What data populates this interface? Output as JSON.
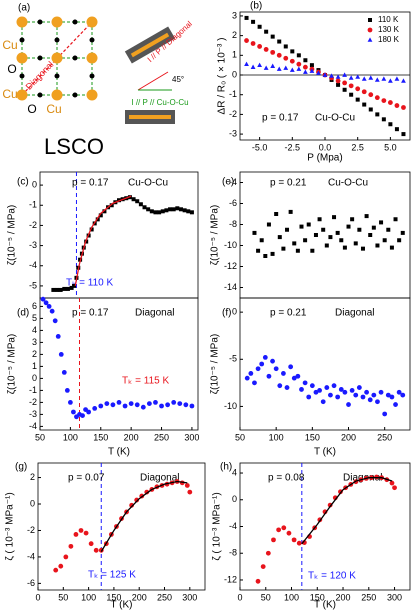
{
  "diagram": {
    "panel_label": "(a)",
    "site_labels": [
      "Cu",
      "O",
      "Cu",
      "O",
      "Cu"
    ],
    "diagonal_label": "Diagonal",
    "config_diagonal": "I // P // Diagonal",
    "angle": "45°",
    "config_cuocu": "I // P // Cu-O-Cu",
    "material": "LSCO"
  },
  "chart_data": [
    {
      "type": "scatter",
      "panel_label": "(b)",
      "xlabel": "P (Mpa)",
      "ylabel": "ΔR / R₀ ( × 10⁻³ )",
      "xlim": [
        -6.5,
        6.5
      ],
      "ylim": [
        -3.3,
        3.2
      ],
      "xticks": [
        {
          "value": -5,
          "label": "-5.0"
        },
        {
          "value": -2.5,
          "label": "-2.5"
        },
        {
          "value": 0,
          "label": "0.0"
        },
        {
          "value": 2.5,
          "label": "2.5"
        },
        {
          "value": 5,
          "label": "5.0"
        }
      ],
      "yticks": [
        -3,
        -2,
        -1,
        0,
        1,
        2,
        3
      ],
      "hlines": [
        0
      ],
      "legend": "top right",
      "annotations": [
        {
          "text": "p = 0.17",
          "color": "#000000"
        },
        {
          "text": "Cu-O-Cu",
          "color": "#000000"
        }
      ],
      "series": [
        {
          "name": "110 K",
          "color": "#000000",
          "marker": "square",
          "x": [
            -6,
            -5.5,
            -5,
            -4.5,
            -4,
            -3.5,
            -3,
            -2.5,
            -2,
            -1.5,
            -1,
            -0.5,
            0,
            0.5,
            1,
            1.5,
            2,
            2.5,
            3,
            3.5,
            4,
            4.5,
            5,
            5.5,
            6
          ],
          "values": [
            2.9,
            2.7,
            2.45,
            2.2,
            1.95,
            1.7,
            1.45,
            1.2,
            1.0,
            0.75,
            0.5,
            0.25,
            0,
            -0.25,
            -0.5,
            -0.75,
            -1.0,
            -1.25,
            -1.5,
            -1.75,
            -2.0,
            -2.25,
            -2.5,
            -2.75,
            -3.0
          ]
        },
        {
          "name": "130 K",
          "color": "#e8141c",
          "marker": "circle",
          "x": [
            -6,
            -5.5,
            -5,
            -4.5,
            -4,
            -3.5,
            -3,
            -2.5,
            -2,
            -1.5,
            -1,
            -0.5,
            0,
            0.5,
            1,
            1.5,
            2,
            2.5,
            3,
            3.5,
            4,
            4.5,
            5,
            5.5,
            6
          ],
          "values": [
            1.75,
            1.6,
            1.45,
            1.3,
            1.15,
            1.0,
            0.85,
            0.7,
            0.55,
            0.4,
            0.3,
            0.15,
            0,
            -0.15,
            -0.3,
            -0.4,
            -0.55,
            -0.7,
            -0.85,
            -1.0,
            -1.15,
            -1.3,
            -1.4,
            -1.55,
            -1.65
          ]
        },
        {
          "name": "180 K",
          "color": "#1a1aff",
          "marker": "triangle",
          "x": [
            -6,
            -5.5,
            -5,
            -4.5,
            -4,
            -3.5,
            -3,
            -2.5,
            -2,
            -1.5,
            -1,
            -0.5,
            0,
            0.5,
            1,
            1.5,
            2,
            2.5,
            3,
            3.5,
            4,
            4.5,
            5,
            5.5,
            6
          ],
          "values": [
            0.55,
            0.4,
            0.5,
            0.35,
            0.45,
            0.3,
            0.35,
            0.25,
            0.3,
            0.15,
            0.2,
            0.1,
            0,
            -0.05,
            -0.1,
            0.0,
            -0.15,
            -0.1,
            -0.2,
            -0.15,
            -0.25,
            -0.2,
            -0.3,
            -0.2,
            -0.3
          ]
        }
      ]
    },
    {
      "type": "scatter",
      "panel_label": "(c)",
      "ylabel": "ζ(10⁻⁵ / MPa)",
      "xlim": [
        50,
        310
      ],
      "ylim": [
        -5.6,
        0.65
      ],
      "yticks": [
        -5,
        -4,
        -3,
        -2,
        -1,
        0
      ],
      "vlines": [
        {
          "x": 110,
          "color": "#1a1aff"
        }
      ],
      "annotations": [
        {
          "text": "p = 0.17",
          "color": "#000000"
        },
        {
          "text": "Cu-O-Cu",
          "color": "#000000"
        },
        {
          "text": "Tₖ = 110 K",
          "color": "#1a1aff"
        }
      ],
      "series": [
        {
          "color": "#000000",
          "marker": "square",
          "x": [
            72,
            78,
            84,
            90,
            96,
            102,
            106,
            110,
            113,
            116,
            119,
            122,
            126,
            130,
            135,
            140,
            145,
            150,
            156,
            162,
            168,
            174,
            180,
            186,
            192,
            198,
            204,
            210,
            216,
            222,
            228,
            234,
            240,
            246,
            252,
            258,
            264,
            270,
            276,
            282,
            288,
            294,
            300
          ],
          "values": [
            -5.2,
            -5.2,
            -5.2,
            -5.15,
            -5.15,
            -5.1,
            -5.0,
            -4.6,
            -4.1,
            -3.7,
            -3.4,
            -3.1,
            -2.8,
            -2.5,
            -2.2,
            -1.9,
            -1.7,
            -1.5,
            -1.3,
            -1.1,
            -1.0,
            -0.85,
            -0.75,
            -0.7,
            -0.65,
            -0.6,
            -0.7,
            -0.8,
            -0.95,
            -1.1,
            -1.2,
            -1.3,
            -1.35,
            -1.35,
            -1.3,
            -1.25,
            -1.2,
            -1.2,
            -1.15,
            -1.2,
            -1.25,
            -1.3,
            -1.35
          ]
        },
        {
          "color": "#e8141c",
          "marker": "line",
          "x": [
            108,
            115,
            125,
            135,
            150,
            170,
            200
          ],
          "values": [
            -5.0,
            -3.9,
            -2.8,
            -2.1,
            -1.4,
            -0.9,
            -0.55
          ]
        }
      ]
    },
    {
      "type": "scatter",
      "panel_label": "(d)",
      "xlabel": "T (K)",
      "ylabel": "ζ(10⁻⁵ / MPa)",
      "xlim": [
        50,
        310
      ],
      "ylim": [
        -4.3,
        6.7
      ],
      "xticks": [
        50,
        100,
        150,
        200,
        250,
        300
      ],
      "yticks": [
        -4,
        -3,
        -2,
        -1,
        0,
        1,
        2,
        3,
        4,
        5,
        6
      ],
      "vlines": [
        {
          "x": 115,
          "color": "#e8141c"
        }
      ],
      "annotations": [
        {
          "text": "p = 0.17",
          "color": "#000000"
        },
        {
          "text": "Diagonal",
          "color": "#000000"
        },
        {
          "text": "Tₖ = 115 K",
          "color": "#e8141c"
        }
      ],
      "series": [
        {
          "color": "#1a1aff",
          "marker": "circle",
          "x": [
            55,
            60,
            65,
            70,
            75,
            80,
            85,
            90,
            95,
            100,
            105,
            110,
            115,
            120,
            125,
            130,
            140,
            150,
            160,
            170,
            180,
            190,
            200,
            210,
            220,
            230,
            240,
            250,
            260,
            270,
            280,
            290,
            300
          ],
          "values": [
            6.6,
            6.3,
            6.0,
            5.6,
            4.8,
            3.5,
            2.0,
            0.5,
            -1.0,
            -2.0,
            -2.8,
            -3.2,
            -3.0,
            -3.1,
            -2.6,
            -2.8,
            -2.5,
            -2.3,
            -2.1,
            -2.2,
            -2.0,
            -2.3,
            -2.1,
            -2.2,
            -2.4,
            -2.1,
            -2.0,
            -2.3,
            -2.2,
            -2.0,
            -2.1,
            -2.2,
            -2.3
          ]
        }
      ]
    },
    {
      "type": "scatter",
      "panel_label": "(e)",
      "ylabel": "ζ(10⁻⁵ / MPa)",
      "xlim": [
        50,
        285
      ],
      "ylim": [
        -15,
        -3
      ],
      "yticks": [
        -14,
        -12,
        -10,
        -8,
        -6,
        -4
      ],
      "annotations": [
        {
          "text": "p = 0.21",
          "color": "#000000"
        },
        {
          "text": "Cu-O-Cu",
          "color": "#000000"
        }
      ],
      "series": [
        {
          "color": "#000000",
          "marker": "square",
          "x": [
            70,
            75,
            80,
            85,
            90,
            95,
            100,
            105,
            110,
            115,
            120,
            125,
            130,
            135,
            140,
            145,
            150,
            155,
            160,
            165,
            170,
            175,
            180,
            185,
            190,
            195,
            200,
            205,
            210,
            215,
            220,
            225,
            230,
            235,
            240,
            245,
            250,
            255,
            260,
            265,
            270,
            275
          ],
          "values": [
            -8.8,
            -10.5,
            -9.5,
            -11,
            -8,
            -10.8,
            -7,
            -9.2,
            -10.3,
            -8.5,
            -6.8,
            -9.8,
            -10.5,
            -8.2,
            -9.5,
            -8,
            -10.5,
            -9,
            -7.5,
            -8.5,
            -10,
            -9.2,
            -7.3,
            -8.8,
            -9.5,
            -10.2,
            -8.2,
            -7.5,
            -9.8,
            -8.5,
            -10.3,
            -7.2,
            -9,
            -8.3,
            -10,
            -7.8,
            -9.5,
            -8.5,
            -10.2,
            -7.5,
            -9.5,
            -8.8
          ]
        }
      ]
    },
    {
      "type": "scatter",
      "panel_label": "(f)",
      "xlabel": "T (K)",
      "ylabel": "ζ(10⁻⁵ / MPa)",
      "xlim": [
        50,
        285
      ],
      "ylim": [
        -12.5,
        1.5
      ],
      "xticks": [
        50,
        100,
        150,
        200,
        250
      ],
      "yticks": [
        -10,
        -5,
        0
      ],
      "annotations": [
        {
          "text": "p = 0.21",
          "color": "#000000"
        },
        {
          "text": "Diagonal",
          "color": "#000000"
        }
      ],
      "series": [
        {
          "color": "#1a1aff",
          "marker": "circle",
          "x": [
            60,
            65,
            70,
            75,
            80,
            85,
            90,
            95,
            100,
            105,
            110,
            115,
            120,
            125,
            130,
            135,
            140,
            145,
            150,
            155,
            160,
            165,
            170,
            175,
            180,
            185,
            190,
            195,
            200,
            205,
            210,
            215,
            220,
            225,
            230,
            235,
            240,
            245,
            250,
            255,
            260,
            265,
            270,
            275
          ],
          "values": [
            -7,
            -6.5,
            -7.5,
            -6,
            -5.5,
            -4.8,
            -6.8,
            -5.2,
            -6,
            -7.8,
            -6.5,
            -8,
            -5.8,
            -7,
            -6.8,
            -8.2,
            -7.5,
            -9,
            -7.8,
            -8.5,
            -8.3,
            -9.5,
            -8,
            -8.8,
            -7.8,
            -9,
            -8.2,
            -8.5,
            -9.8,
            -8.3,
            -8.8,
            -8,
            -9,
            -8.5,
            -9.3,
            -8.8,
            -9.5,
            -8.5,
            -10.8,
            -8.8,
            -9,
            -9.8,
            -8.5,
            -8.8
          ]
        }
      ]
    },
    {
      "type": "scatter",
      "panel_label": "(g)",
      "xlabel": "T (K)",
      "ylabel": "ζ ( 10⁻³ MPa⁻¹)",
      "xlim": [
        0,
        330
      ],
      "ylim": [
        -6.5,
        3.1
      ],
      "xticks": [
        0,
        50,
        100,
        150,
        200,
        250,
        300
      ],
      "yticks": [
        -6,
        -4,
        -2,
        0,
        2
      ],
      "vlines": [
        {
          "x": 125,
          "color": "#1a1aff"
        }
      ],
      "annotations": [
        {
          "text": "p = 0.07",
          "color": "#000000"
        },
        {
          "text": "Diagonal",
          "color": "#000000"
        },
        {
          "text": "Tₖ = 125 K",
          "color": "#1a1aff"
        }
      ],
      "series": [
        {
          "color": "#e8141c",
          "marker": "circle",
          "x": [
            35,
            45,
            55,
            65,
            75,
            85,
            95,
            105,
            115,
            125,
            135,
            145,
            155,
            165,
            175,
            185,
            195,
            205,
            215,
            225,
            235,
            245,
            255,
            265,
            275,
            285,
            295,
            300
          ],
          "values": [
            -5,
            -4.7,
            -4,
            -3.2,
            -2.3,
            -2.0,
            -2.2,
            -3.0,
            -3.5,
            -3.5,
            -3.0,
            -2.3,
            -1.7,
            -1.1,
            -0.6,
            -0.1,
            0.3,
            0.6,
            0.9,
            1.1,
            1.3,
            1.4,
            1.5,
            1.6,
            1.7,
            1.6,
            1.4,
            0.9
          ]
        },
        {
          "color": "#000000",
          "marker": "line",
          "x": [
            125,
            150,
            175,
            200,
            225,
            250,
            275,
            295
          ],
          "values": [
            -3.6,
            -2.0,
            -0.6,
            0.4,
            1.1,
            1.5,
            1.7,
            1.6
          ]
        }
      ]
    },
    {
      "type": "scatter",
      "panel_label": "(h)",
      "xlabel": "T (K)",
      "ylabel": "ζ ( 10⁻³ MPa⁻¹)",
      "xlim": [
        0,
        330
      ],
      "ylim": [
        -13.5,
        5.5
      ],
      "xticks": [
        0,
        50,
        100,
        150,
        200,
        250,
        300
      ],
      "yticks": [
        -12,
        -8,
        -4,
        0,
        4
      ],
      "vlines": [
        {
          "x": 120,
          "color": "#1a1aff"
        }
      ],
      "annotations": [
        {
          "text": "p = 0.08",
          "color": "#000000"
        },
        {
          "text": "Diagonal",
          "color": "#000000"
        },
        {
          "text": "Tₖ = 120 K",
          "color": "#1a1aff"
        }
      ],
      "series": [
        {
          "color": "#e8141c",
          "marker": "circle",
          "x": [
            35,
            45,
            55,
            65,
            75,
            85,
            95,
            105,
            115,
            125,
            135,
            145,
            155,
            165,
            175,
            185,
            195,
            205,
            215,
            225,
            235,
            245,
            255,
            265,
            275,
            285,
            295,
            300
          ],
          "values": [
            -12.2,
            -10,
            -8,
            -6,
            -4.5,
            -4.2,
            -5,
            -6,
            -6.5,
            -6.4,
            -5.5,
            -4.2,
            -3,
            -1.8,
            -0.8,
            0.3,
            1.2,
            1.8,
            2.3,
            2.7,
            3.0,
            3.2,
            3.3,
            3.4,
            3.3,
            3.0,
            2.5,
            1.8
          ]
        },
        {
          "color": "#000000",
          "marker": "line",
          "x": [
            120,
            150,
            175,
            200,
            225,
            250,
            275,
            295
          ],
          "values": [
            -6.6,
            -3.7,
            -1,
            1.5,
            2.8,
            3.3,
            3.3,
            2.8
          ]
        }
      ]
    }
  ]
}
